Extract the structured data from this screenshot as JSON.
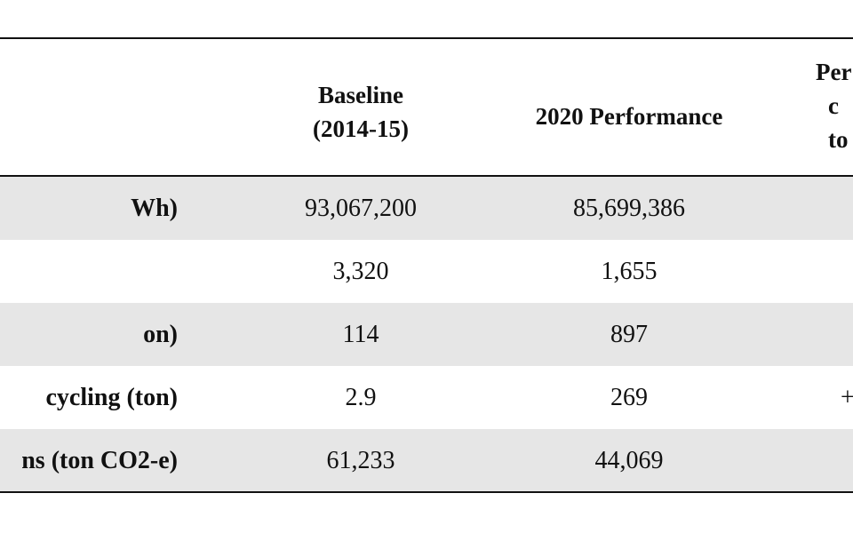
{
  "table": {
    "headers": {
      "baseline_line1": "Baseline",
      "baseline_line2": "(2014-15)",
      "performance": "2020 Performance",
      "pct_line1": "Per",
      "pct_line2": "c",
      "pct_line3": "to"
    },
    "rows": [
      {
        "label": "Wh)",
        "baseline": "93,067,200",
        "performance": "85,699,386",
        "pct": ""
      },
      {
        "label": "",
        "baseline": "3,320",
        "performance": "1,655",
        "pct": ""
      },
      {
        "label": "on)",
        "baseline": "114",
        "performance": "897",
        "pct": ""
      },
      {
        "label": "cycling (ton)",
        "baseline": "2.9",
        "performance": "269",
        "pct": "+"
      },
      {
        "label": "ns (ton CO2-e)",
        "baseline": "61,233",
        "performance": "44,069",
        "pct": ""
      }
    ]
  },
  "colors": {
    "row_shade": "#e6e6e6",
    "rule": "#111111"
  }
}
